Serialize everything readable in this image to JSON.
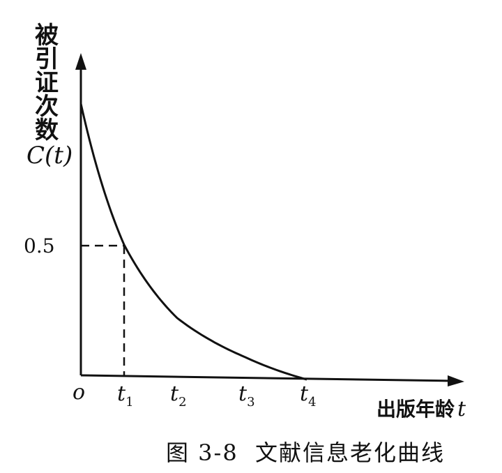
{
  "chart_data": {
    "type": "line",
    "ylabel": "被引证次数",
    "ylabel_symbol": "C(t)",
    "xlabel": "出版年龄",
    "xlabel_symbol": "t",
    "caption": "图 3-8  文献信息老化曲线",
    "origin_label": "o",
    "x_ticks": [
      {
        "main": "t",
        "sub": "1",
        "value": 1
      },
      {
        "main": "t",
        "sub": "2",
        "value": 2
      },
      {
        "main": "t",
        "sub": "3",
        "value": 3
      },
      {
        "main": "t",
        "sub": "4",
        "value": 4
      }
    ],
    "y_ticks": [
      {
        "label": "0.5",
        "value": 0.5
      }
    ],
    "xlim": [
      0,
      5
    ],
    "ylim": [
      0,
      1.2
    ],
    "curve": {
      "name": "",
      "initial_value": 1.0,
      "half_life_x": 1,
      "end_x": 4
    },
    "guides": {
      "x": 1,
      "y": 0.5
    },
    "grid": false
  }
}
